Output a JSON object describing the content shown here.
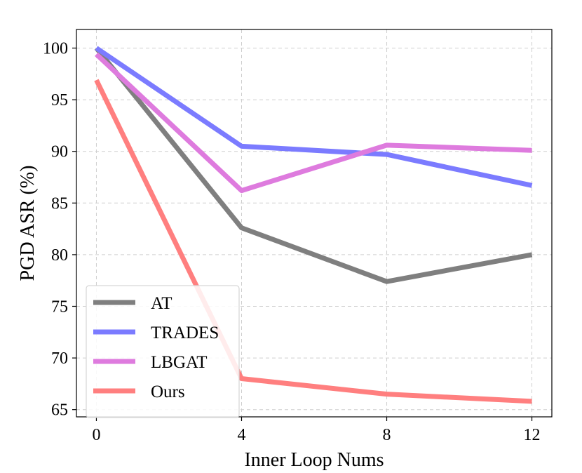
{
  "chart_data": {
    "type": "line",
    "title": "",
    "xlabel": "Inner Loop Nums",
    "ylabel": "PGD ASR (%)",
    "x": [
      0,
      4,
      8,
      12
    ],
    "xticks": [
      "0",
      "4",
      "8",
      "12"
    ],
    "yticks": [
      "65",
      "70",
      "75",
      "80",
      "85",
      "90",
      "95",
      "100"
    ],
    "xlim": [
      -0.55,
      12.55
    ],
    "ylim": [
      64.3,
      101.8
    ],
    "grid": true,
    "legend_position": "lower-left",
    "series": [
      {
        "name": "AT",
        "values": [
          100.0,
          82.6,
          77.4,
          80.0
        ],
        "color": "#7f7f7f"
      },
      {
        "name": "TRADES",
        "values": [
          100.0,
          90.5,
          89.7,
          86.7
        ],
        "color": "#7b7bff"
      },
      {
        "name": "LBGAT",
        "values": [
          99.4,
          86.2,
          90.6,
          90.1
        ],
        "color": "#de7bde"
      },
      {
        "name": "Ours",
        "values": [
          96.9,
          68.0,
          66.5,
          65.8
        ],
        "color": "#ff7f7f"
      }
    ]
  }
}
